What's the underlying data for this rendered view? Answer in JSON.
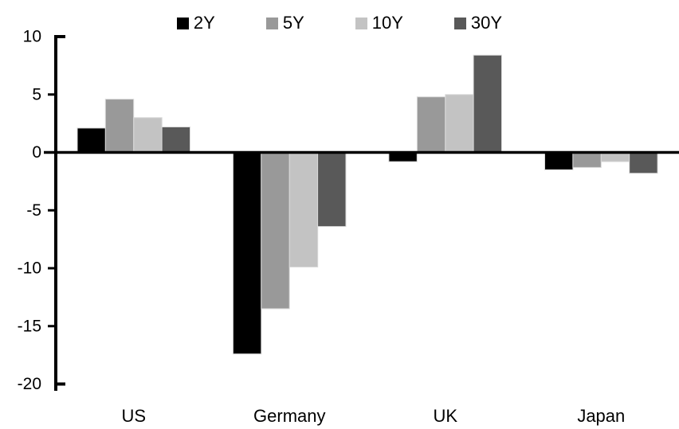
{
  "chart_data": {
    "type": "bar",
    "title": "",
    "xlabel": "",
    "ylabel": "",
    "categories": [
      "US",
      "Germany",
      "UK",
      "Japan"
    ],
    "series": [
      {
        "name": "2Y",
        "color": "#000000",
        "values": [
          2.1,
          -17.4,
          -0.8,
          -1.5
        ]
      },
      {
        "name": "5Y",
        "color": "#999999",
        "values": [
          4.6,
          -13.5,
          4.8,
          -1.3
        ]
      },
      {
        "name": "10Y",
        "color": "#c3c3c3",
        "values": [
          3.0,
          -9.9,
          5.0,
          -0.8
        ]
      },
      {
        "name": "30Y",
        "color": "#595959",
        "values": [
          2.2,
          -6.4,
          8.4,
          -1.8
        ]
      }
    ],
    "ylim": [
      -20,
      10
    ],
    "ytick_step": 5,
    "ytick_labels": [
      "10",
      "5",
      "0",
      "-5",
      "-10",
      "-15",
      "-20"
    ],
    "grid": false,
    "legend_position": "top"
  },
  "colors": {
    "axis": "#000000",
    "bar_outline": "#d9d9d9",
    "background": "#ffffff",
    "text": "#000000"
  }
}
